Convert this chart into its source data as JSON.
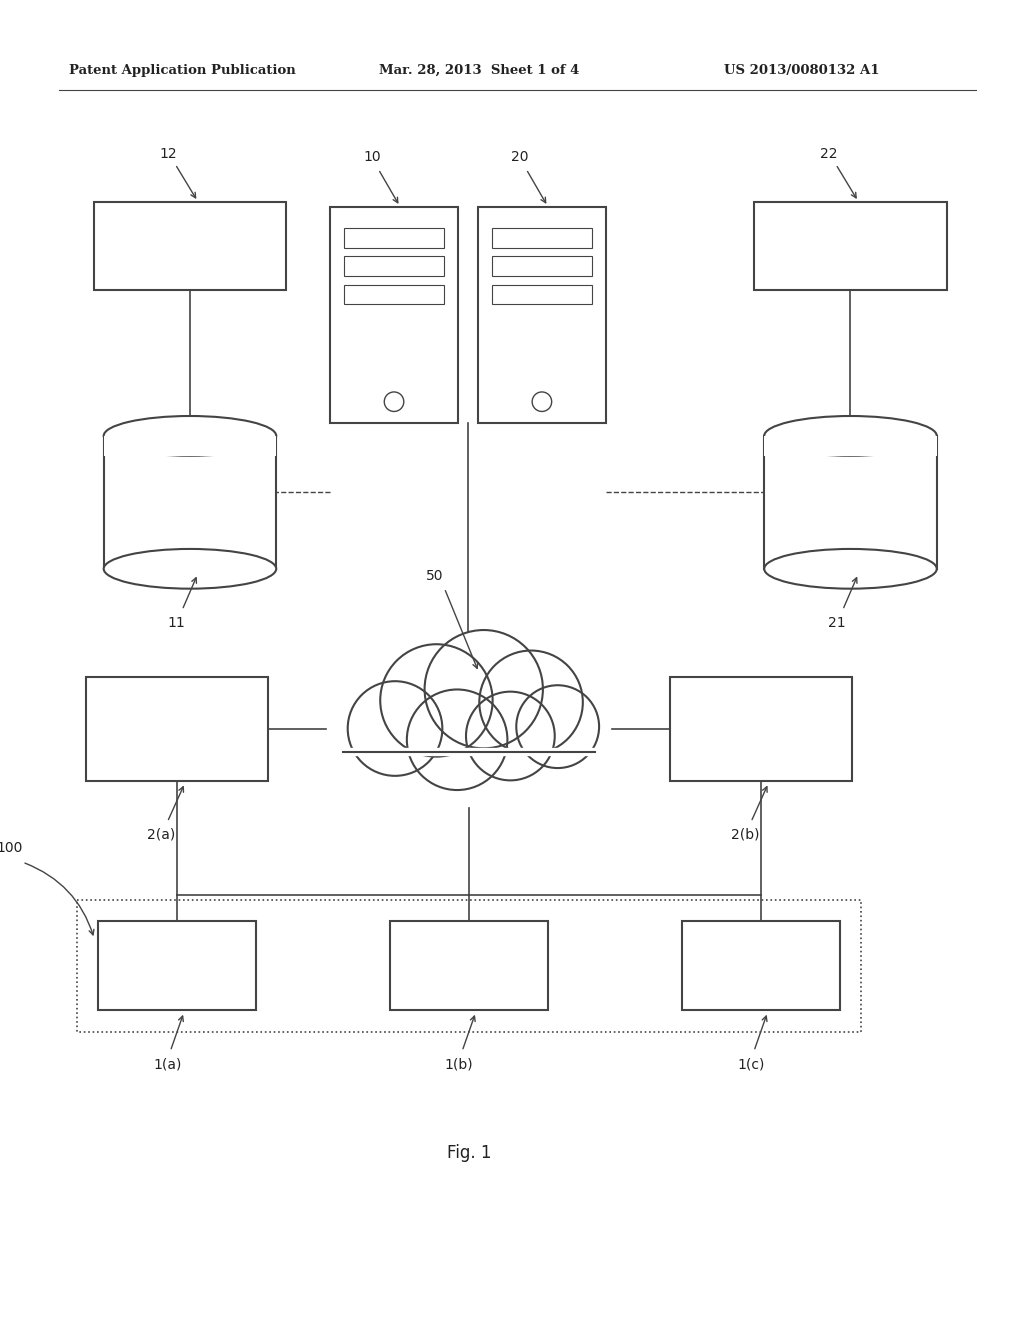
{
  "bg_color": "#ffffff",
  "header_text1": "Patent Application Publication",
  "header_text2": "Mar. 28, 2013  Sheet 1 of 4",
  "header_text3": "US 2013/0080132 A1",
  "fig_label": "Fig. 1",
  "line_color": "#444444",
  "text_color": "#222222"
}
